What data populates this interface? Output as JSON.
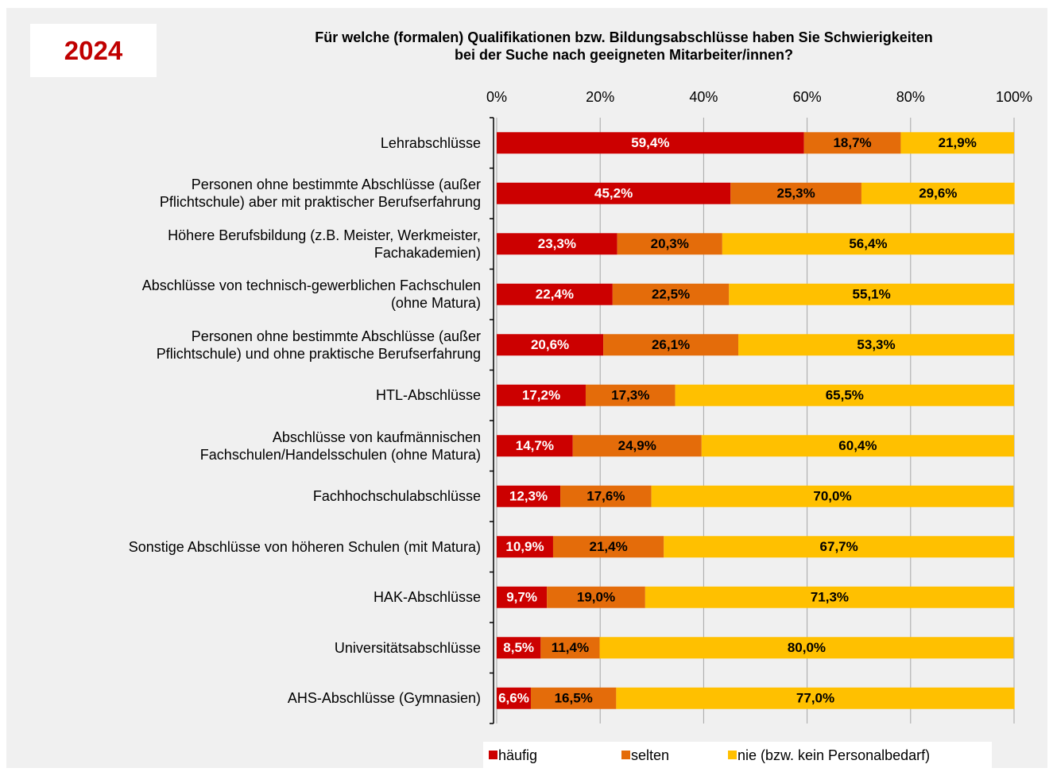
{
  "chart_data": {
    "type": "stacked_barh",
    "title": "Für welche (formalen) Qualifikationen bzw. Bildungsabschlüsse haben Sie Schwierigkeiten\nbei der Suche nach geeigneten Mitarbeiter/innen?",
    "annotation": "2024",
    "categories": [
      "Lehrabschlüsse",
      "Personen ohne bestimmte Abschlüsse (außer\nPflichtschule) aber mit praktischer Berufserfahrung",
      "Höhere Berufsbildung (z.B. Meister, Werkmeister,\nFachakademien)",
      "Abschlüsse von technisch-gewerblichen Fachschulen\n(ohne Matura)",
      "Personen ohne bestimmte Abschlüsse (außer\nPflichtschule) und ohne praktische Berufserfahrung",
      "HTL-Abschlüsse",
      "Abschlüsse von kaufmännischen\nFachschulen/Handelsschulen (ohne Matura)",
      "Fachhochschulabschlüsse",
      "Sonstige Abschlüsse von höheren Schulen (mit Matura)",
      "HAK-Abschlüsse",
      "Universitätsabschlüsse",
      "AHS-Abschlüsse (Gymnasien)"
    ],
    "series": [
      {
        "name": "häufig",
        "color": "#cc0000",
        "label_color": "#ffffff",
        "values": [
          59.4,
          45.2,
          23.3,
          22.4,
          20.6,
          17.2,
          14.7,
          12.3,
          10.9,
          9.7,
          8.5,
          6.6
        ],
        "value_labels": [
          "59,4%",
          "45,2%",
          "23,3%",
          "22,4%",
          "20,6%",
          "17,2%",
          "14,7%",
          "12,3%",
          "10,9%",
          "9,7%",
          "8,5%",
          "6,6%"
        ]
      },
      {
        "name": "selten",
        "color": "#e46c0a",
        "label_color": "#000000",
        "values": [
          18.7,
          25.3,
          20.3,
          22.5,
          26.1,
          17.3,
          24.9,
          17.6,
          21.4,
          19.0,
          11.4,
          16.5
        ],
        "value_labels": [
          "18,7%",
          "25,3%",
          "20,3%",
          "22,5%",
          "26,1%",
          "17,3%",
          "24,9%",
          "17,6%",
          "21,4%",
          "19,0%",
          "11,4%",
          "16,5%"
        ]
      },
      {
        "name": "nie (bzw. kein Personalbedarf)",
        "color": "#ffc000",
        "label_color": "#000000",
        "values": [
          21.9,
          29.6,
          56.4,
          55.1,
          53.3,
          65.5,
          60.4,
          70.0,
          67.7,
          71.3,
          80.0,
          77.0
        ],
        "value_labels": [
          "21,9%",
          "29,6%",
          "56,4%",
          "55,1%",
          "53,3%",
          "65,5%",
          "60,4%",
          "70,0%",
          "67,7%",
          "71,3%",
          "80,0%",
          "77,0%"
        ]
      }
    ],
    "xlim": [
      0,
      100
    ],
    "xticks": [
      {
        "value": 0,
        "label": "0%"
      },
      {
        "value": 20,
        "label": "20%"
      },
      {
        "value": 40,
        "label": "40%"
      },
      {
        "value": 60,
        "label": "60%"
      },
      {
        "value": 80,
        "label": "80%"
      },
      {
        "value": 100,
        "label": "100%"
      }
    ],
    "grid": true,
    "legend": "bottom"
  }
}
